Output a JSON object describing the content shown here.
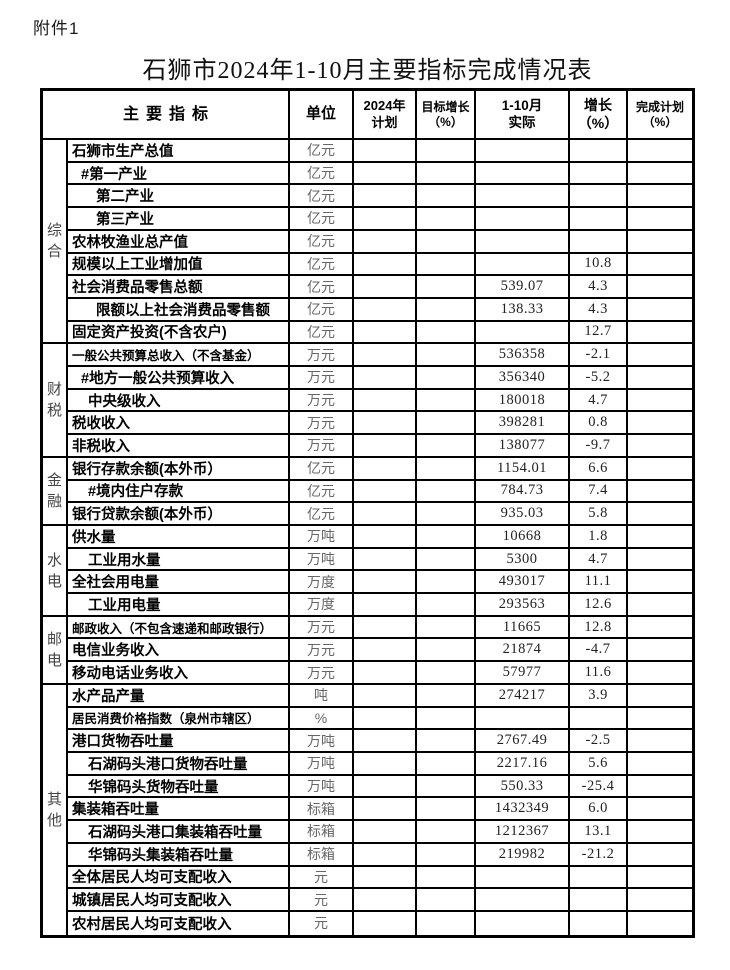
{
  "page": {
    "attachment_label": "附件1",
    "title": "石狮市2024年1-10月主要指标完成情况表"
  },
  "colors": {
    "border": "#000000",
    "indicator_text": "#000000",
    "unit_text": "#666666",
    "number_text": "#222222",
    "category_text": "#444444",
    "background": "#ffffff"
  },
  "table": {
    "headers": {
      "indicator": "主要指标",
      "unit": "单位",
      "plan": "2024年\n计划",
      "target_growth": "目标增长\n（%）",
      "actual": "1-10月\n实际",
      "growth": "增长\n（%）",
      "completion": "完成计划\n（%）"
    },
    "sections": [
      {
        "category": "综合",
        "rows": [
          {
            "name": "石狮市生产总值",
            "indent": 0,
            "unit": "亿元",
            "plan": "",
            "target": "",
            "actual": "",
            "growth": "",
            "completion": ""
          },
          {
            "name": "#第一产业",
            "indent": 1,
            "unit": "亿元",
            "plan": "",
            "target": "",
            "actual": "",
            "growth": "",
            "completion": ""
          },
          {
            "name": "第二产业",
            "indent": 3,
            "unit": "亿元",
            "plan": "",
            "target": "",
            "actual": "",
            "growth": "",
            "completion": ""
          },
          {
            "name": "第三产业",
            "indent": 3,
            "unit": "亿元",
            "plan": "",
            "target": "",
            "actual": "",
            "growth": "",
            "completion": ""
          },
          {
            "name": "农林牧渔业总产值",
            "indent": 0,
            "unit": "亿元",
            "plan": "",
            "target": "",
            "actual": "",
            "growth": "",
            "completion": ""
          },
          {
            "name": "规模以上工业增加值",
            "indent": 0,
            "unit": "亿元",
            "plan": "",
            "target": "",
            "actual": "",
            "growth": "10.8",
            "completion": ""
          },
          {
            "name": "社会消费品零售总额",
            "indent": 0,
            "unit": "亿元",
            "plan": "",
            "target": "",
            "actual": "539.07",
            "growth": "4.3",
            "completion": ""
          },
          {
            "name": "限额以上社会消费品零售额",
            "indent": 3,
            "unit": "亿元",
            "plan": "",
            "target": "",
            "actual": "138.33",
            "growth": "4.3",
            "completion": ""
          },
          {
            "name": "固定资产投资(不含农户)",
            "indent": 0,
            "unit": "亿元",
            "plan": "",
            "target": "",
            "actual": "",
            "growth": "12.7",
            "completion": ""
          }
        ]
      },
      {
        "category": "财税",
        "rows": [
          {
            "name": "一般公共预算总收入（不含基金）",
            "indent": 0,
            "unit": "万元",
            "plan": "",
            "target": "",
            "actual": "536358",
            "growth": "-2.1",
            "completion": ""
          },
          {
            "name": "#地方一般公共预算收入",
            "indent": 1,
            "unit": "万元",
            "plan": "",
            "target": "",
            "actual": "356340",
            "growth": "-5.2",
            "completion": ""
          },
          {
            "name": "中央级收入",
            "indent": 2,
            "unit": "万元",
            "plan": "",
            "target": "",
            "actual": "180018",
            "growth": "4.7",
            "completion": ""
          },
          {
            "name": "税收收入",
            "indent": 0,
            "unit": "万元",
            "plan": "",
            "target": "",
            "actual": "398281",
            "growth": "0.8",
            "completion": ""
          },
          {
            "name": "非税收入",
            "indent": 0,
            "unit": "万元",
            "plan": "",
            "target": "",
            "actual": "138077",
            "growth": "-9.7",
            "completion": ""
          }
        ]
      },
      {
        "category": "金融",
        "rows": [
          {
            "name": "银行存款余额(本外币）",
            "indent": 0,
            "unit": "亿元",
            "plan": "",
            "target": "",
            "actual": "1154.01",
            "growth": "6.6",
            "completion": ""
          },
          {
            "name": "#境内住户存款",
            "indent": 2,
            "unit": "亿元",
            "plan": "",
            "target": "",
            "actual": "784.73",
            "growth": "7.4",
            "completion": ""
          },
          {
            "name": "银行贷款余额(本外币）",
            "indent": 0,
            "unit": "亿元",
            "plan": "",
            "target": "",
            "actual": "935.03",
            "growth": "5.8",
            "completion": ""
          }
        ]
      },
      {
        "category": "水电",
        "rows": [
          {
            "name": "供水量",
            "indent": 0,
            "unit": "万吨",
            "plan": "",
            "target": "",
            "actual": "10668",
            "growth": "1.8",
            "completion": ""
          },
          {
            "name": "工业用水量",
            "indent": 2,
            "unit": "万吨",
            "plan": "",
            "target": "",
            "actual": "5300",
            "growth": "4.7",
            "completion": ""
          },
          {
            "name": "全社会用电量",
            "indent": 0,
            "unit": "万度",
            "plan": "",
            "target": "",
            "actual": "493017",
            "growth": "11.1",
            "completion": ""
          },
          {
            "name": "工业用电量",
            "indent": 2,
            "unit": "万度",
            "plan": "",
            "target": "",
            "actual": "293563",
            "growth": "12.6",
            "completion": ""
          }
        ]
      },
      {
        "category": "邮电",
        "rows": [
          {
            "name": "邮政收入（不包含速递和邮政银行）",
            "indent": 0,
            "unit": "万元",
            "plan": "",
            "target": "",
            "actual": "11665",
            "growth": "12.8",
            "completion": ""
          },
          {
            "name": "电信业务收入",
            "indent": 0,
            "unit": "万元",
            "plan": "",
            "target": "",
            "actual": "21874",
            "growth": "-4.7",
            "completion": ""
          },
          {
            "name": "移动电话业务收入",
            "indent": 0,
            "unit": "万元",
            "plan": "",
            "target": "",
            "actual": "57977",
            "growth": "11.6",
            "completion": ""
          }
        ]
      },
      {
        "category": "其他",
        "rows": [
          {
            "name": "水产品产量",
            "indent": 0,
            "unit": "吨",
            "plan": "",
            "target": "",
            "actual": "274217",
            "growth": "3.9",
            "completion": ""
          },
          {
            "name": "居民消费价格指数（泉州市辖区）",
            "indent": 0,
            "unit": "%",
            "plan": "",
            "target": "",
            "actual": "",
            "growth": "",
            "completion": ""
          },
          {
            "name": "港口货物吞吐量",
            "indent": 0,
            "unit": "万吨",
            "plan": "",
            "target": "",
            "actual": "2767.49",
            "growth": "-2.5",
            "completion": ""
          },
          {
            "name": "石湖码头港口货物吞吐量",
            "indent": 2,
            "unit": "万吨",
            "plan": "",
            "target": "",
            "actual": "2217.16",
            "growth": "5.6",
            "completion": ""
          },
          {
            "name": "华锦码头货物吞吐量",
            "indent": 2,
            "unit": "万吨",
            "plan": "",
            "target": "",
            "actual": "550.33",
            "growth": "-25.4",
            "completion": ""
          },
          {
            "name": "集装箱吞吐量",
            "indent": 0,
            "unit": "标箱",
            "plan": "",
            "target": "",
            "actual": "1432349",
            "growth": "6.0",
            "completion": ""
          },
          {
            "name": "石湖码头港口集装箱吞吐量",
            "indent": 2,
            "unit": "标箱",
            "plan": "",
            "target": "",
            "actual": "1212367",
            "growth": "13.1",
            "completion": ""
          },
          {
            "name": "华锦码头集装箱吞吐量",
            "indent": 2,
            "unit": "标箱",
            "plan": "",
            "target": "",
            "actual": "219982",
            "growth": "-21.2",
            "completion": ""
          },
          {
            "name": "全体居民人均可支配收入",
            "indent": 0,
            "unit": "元",
            "plan": "",
            "target": "",
            "actual": "",
            "growth": "",
            "completion": ""
          },
          {
            "name": "城镇居民人均可支配收入",
            "indent": 0,
            "unit": "元",
            "plan": "",
            "target": "",
            "actual": "",
            "growth": "",
            "completion": ""
          },
          {
            "name": "农村居民人均可支配收入",
            "indent": 0,
            "unit": "元",
            "plan": "",
            "target": "",
            "actual": "",
            "growth": "",
            "completion": ""
          }
        ]
      }
    ]
  }
}
